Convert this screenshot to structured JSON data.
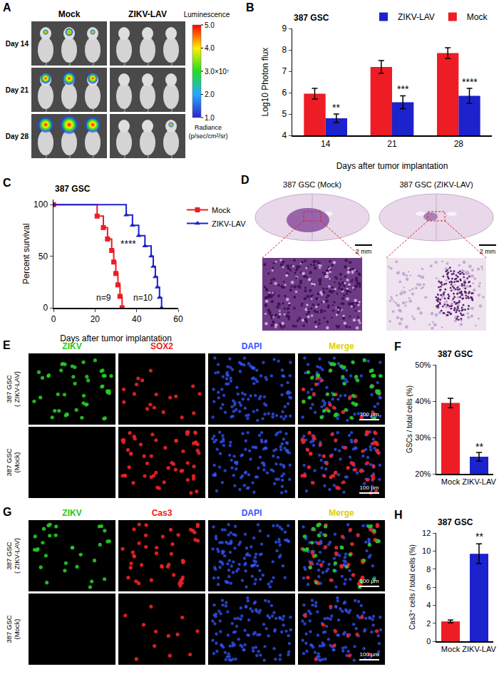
{
  "figure": {
    "panel_labels": [
      "A",
      "B",
      "C",
      "D",
      "E",
      "F",
      "G",
      "H"
    ],
    "imaging": {
      "columns": [
        "Mock",
        "ZIKV-LAV"
      ],
      "rows": [
        "Day 14",
        "Day 21",
        "Day 28"
      ],
      "colorbar": {
        "title": "Luminescence",
        "range": [
          1,
          5
        ],
        "ticks": [
          {
            "value": 5,
            "label": "5.0"
          },
          {
            "value": 4,
            "label": "4.0"
          },
          {
            "value": 3,
            "label": "3.0×10⁷"
          },
          {
            "value": 2,
            "label": "2.0"
          },
          {
            "value": 1,
            "label": "1.0"
          }
        ],
        "unit": "Radiance (p/sec/cm²/sr)"
      }
    },
    "histology": {
      "titles": [
        "387 GSC (Mock)",
        "387 GSC (ZIKV-LAV)"
      ],
      "scale_bar": "2 mm"
    },
    "staining": [
      {
        "channels": [
          {
            "name": "ZIKV",
            "color": "#22cc22"
          },
          {
            "name": "SOX2",
            "color": "#ee2222"
          },
          {
            "name": "DAPI",
            "color": "#3355ff"
          },
          {
            "name": "Merge",
            "color": "#e0d000"
          }
        ],
        "rows": [
          "387 GSC ( ZIKV-LAV)",
          "387 GSC (Mock)"
        ],
        "scale_bar": "100 μm"
      },
      {
        "channels": [
          {
            "name": "ZIKV",
            "color": "#22cc22"
          },
          {
            "name": "Cas3",
            "color": "#ee2222"
          },
          {
            "name": "DAPI",
            "color": "#3355ff"
          },
          {
            "name": "Merge",
            "color": "#e0d000"
          }
        ],
        "rows": [
          "387 GSC ( ZIKV-LAV)",
          "387 GSC (Mock)"
        ],
        "scale_bar": "100 μm"
      }
    ]
  },
  "chart_data": [
    {
      "type": "bar",
      "title": "387 GSC",
      "categories": [
        "14",
        "21",
        "28"
      ],
      "x_label": "Days after tumor implantation",
      "y_label": "Log10 Photon flux",
      "series": [
        {
          "name": "Mock",
          "color": "#ee1c24",
          "values": [
            5.95,
            7.2,
            7.85
          ],
          "errors": [
            0.25,
            0.3,
            0.25
          ]
        },
        {
          "name": "ZIKV-LAV",
          "color": "#1c22cc",
          "values": [
            4.8,
            5.55,
            5.85
          ],
          "errors": [
            0.2,
            0.3,
            0.35
          ]
        }
      ],
      "ylim": [
        4,
        9
      ],
      "yticks": [
        4,
        5,
        6,
        7,
        8,
        9
      ],
      "legend": "top right",
      "annotations": [
        {
          "text": "**",
          "category": "14",
          "series": "ZIKV-LAV",
          "y": 5.3
        },
        {
          "text": "***",
          "category": "21",
          "series": "ZIKV-LAV",
          "y": 6.15
        },
        {
          "text": "****",
          "category": "28",
          "series": "ZIKV-LAV",
          "y": 6.5
        }
      ]
    },
    {
      "type": "line",
      "title": "387 GSC",
      "x_label": "Days after tumor implantation",
      "y_label": "Percent survival",
      "series": [
        {
          "name": "Mock",
          "color": "#ee1c24",
          "marker": "square",
          "line_style": "step",
          "x": [
            0,
            21,
            24,
            26,
            28,
            29,
            30,
            31,
            32,
            33
          ],
          "values": [
            100,
            88.9,
            77.8,
            66.7,
            55.6,
            44.4,
            33.3,
            22.2,
            11.1,
            0
          ]
        },
        {
          "name": "ZIKV-LAV",
          "color": "#1c22cc",
          "marker": "triangle-up",
          "line_style": "step",
          "x": [
            0,
            35,
            38,
            41,
            44,
            47,
            48,
            49,
            50,
            51,
            52
          ],
          "values": [
            100,
            90,
            80,
            70,
            60,
            50,
            40,
            30,
            20,
            10,
            0
          ]
        }
      ],
      "xlim": [
        0,
        60
      ],
      "xticks": [
        0,
        20,
        40,
        60
      ],
      "ylim": [
        0,
        105
      ],
      "yticks": [
        0,
        50,
        100
      ],
      "legend": "right",
      "annotations": [
        {
          "text": "****",
          "x": 36,
          "y": 62
        },
        {
          "text": "n=9",
          "x": 24,
          "y": 10
        },
        {
          "text": "n=10",
          "x": 43,
          "y": 10
        }
      ]
    },
    {
      "type": "bar",
      "title": "387 GSC",
      "categories": [
        "Mock",
        "ZIKV-LAV"
      ],
      "y_label": "GSCs / total cells (%)",
      "values": [
        39.5,
        24.7
      ],
      "errors": [
        1.3,
        1.2
      ],
      "colors": [
        "#ee1c24",
        "#1c22cc"
      ],
      "ylim": [
        20,
        50
      ],
      "yticks": [
        {
          "value": 20,
          "label": "20%"
        },
        {
          "value": 30,
          "label": "30%"
        },
        {
          "value": 40,
          "label": "40%"
        },
        {
          "value": 50,
          "label": "50%"
        }
      ],
      "annotations": [
        {
          "text": "**",
          "category": "ZIKV-LAV",
          "y": 27.5
        }
      ]
    },
    {
      "type": "bar",
      "title": "387 GSC",
      "categories": [
        "Mock",
        "ZIKV-LAV"
      ],
      "y_label": "Cas3⁺ cells / total cells (%)",
      "values": [
        2.2,
        9.7
      ],
      "errors": [
        0.15,
        1.1
      ],
      "colors": [
        "#ee1c24",
        "#1c22cc"
      ],
      "ylim": [
        0,
        12
      ],
      "yticks": [
        0,
        2,
        4,
        6,
        8,
        10,
        12
      ],
      "annotations": [
        {
          "text": "**",
          "category": "ZIKV-LAV",
          "y": 11.6
        }
      ]
    }
  ]
}
